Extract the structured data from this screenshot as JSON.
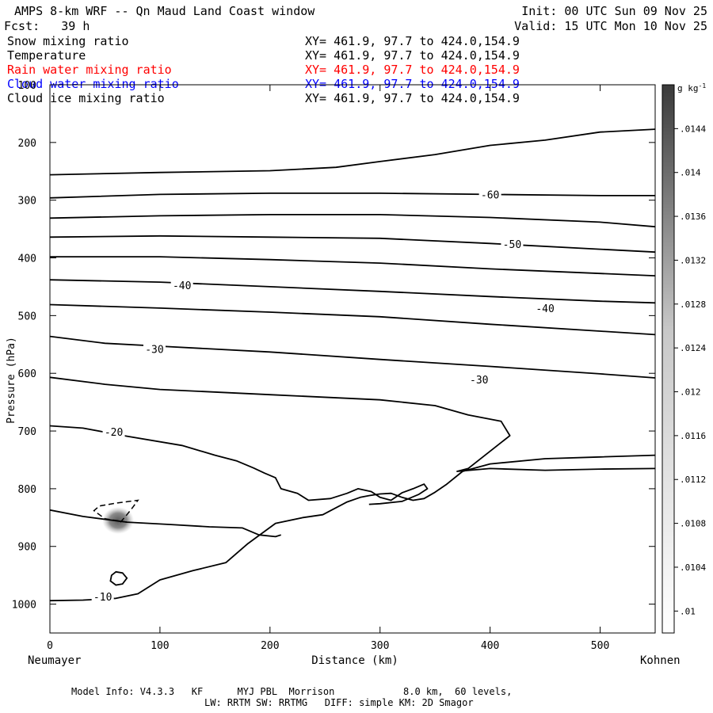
{
  "header": {
    "title": "AMPS 8-km WRF -- Qn Maud Land Coast window",
    "init": "Init: 00 UTC Sun 09 Nov 25",
    "fcst": "Fcst:   39 h",
    "valid": "Valid: 15 UTC Mon 10 Nov 25"
  },
  "fields": [
    {
      "name": "Snow mixing ratio",
      "xy": "XY= 461.9, 97.7 to 424.0,154.9",
      "color": "#000000"
    },
    {
      "name": "Temperature",
      "xy": "XY= 461.9, 97.7 to 424.0,154.9",
      "color": "#000000"
    },
    {
      "name": "Rain water mixing ratio",
      "xy": "XY= 461.9, 97.7 to 424.0,154.9",
      "color": "#ff0000"
    },
    {
      "name": "Cloud water mixing ratio",
      "xy": "XY= 461.9, 97.7 to 424.0,154.9",
      "color": "#0000ff"
    },
    {
      "name": "Cloud ice mixing ratio",
      "xy": "XY= 461.9, 97.7 to 424.0,154.9",
      "color": "#000000"
    }
  ],
  "footer": {
    "line1": "Model Info: V4.3.3   KF      MYJ PBL  Morrison            8.0 km,  60 levels,",
    "line2": "LW: RRTM SW: RRTMG   DIFF: simple KM: 2D Smagor"
  },
  "chart_data": {
    "type": "cross-section contour",
    "xlabel": "Distance (km)",
    "ylabel": "Pressure (hPa)",
    "x_left_label": "Neumayer",
    "x_right_label": "Kohnen",
    "xlim": [
      0,
      550
    ],
    "ylim": [
      1050,
      100
    ],
    "x_ticks": [
      0,
      100,
      200,
      300,
      400,
      500
    ],
    "y_ticks": [
      100,
      200,
      300,
      400,
      500,
      600,
      700,
      800,
      900,
      1000
    ],
    "colorbar": {
      "unit": "g kg",
      "unit_exp": "-1",
      "ticks": [
        ".01",
        ".0104",
        ".0108",
        ".0112",
        ".0116",
        ".012",
        ".0124",
        ".0128",
        ".0132",
        ".0136",
        ".014",
        ".0144"
      ],
      "min": 0.0098,
      "max": 0.0148,
      "light": "#ffffff",
      "dark": "#3a3a3a"
    },
    "temperature_contours": [
      {
        "points": [
          [
            0,
            256
          ],
          [
            100,
            252
          ],
          [
            200,
            249
          ],
          [
            260,
            243
          ],
          [
            300,
            233
          ],
          [
            350,
            221
          ],
          [
            400,
            205
          ],
          [
            450,
            196
          ],
          [
            500,
            182
          ],
          [
            550,
            177
          ]
        ]
      },
      {
        "points": [
          [
            0,
            296
          ],
          [
            100,
            290
          ],
          [
            200,
            288
          ],
          [
            300,
            288
          ],
          [
            400,
            290
          ],
          [
            500,
            292
          ],
          [
            550,
            292
          ]
        ]
      },
      {
        "points": [
          [
            0,
            331
          ],
          [
            100,
            327
          ],
          [
            200,
            325
          ],
          [
            300,
            325
          ],
          [
            400,
            330
          ],
          [
            500,
            338
          ],
          [
            550,
            346
          ]
        ]
      },
      {
        "points": [
          [
            0,
            364
          ],
          [
            100,
            362
          ],
          [
            200,
            364
          ],
          [
            300,
            366
          ],
          [
            400,
            375
          ],
          [
            500,
            385
          ],
          [
            550,
            390
          ]
        ]
      },
      {
        "points": [
          [
            0,
            398
          ],
          [
            100,
            398
          ],
          [
            200,
            403
          ],
          [
            300,
            409
          ],
          [
            400,
            419
          ],
          [
            500,
            427
          ],
          [
            550,
            431
          ]
        ]
      },
      {
        "points": [
          [
            0,
            438
          ],
          [
            100,
            442
          ],
          [
            200,
            450
          ],
          [
            300,
            458
          ],
          [
            400,
            467
          ],
          [
            500,
            475
          ],
          [
            550,
            478
          ]
        ]
      },
      {
        "points": [
          [
            0,
            481
          ],
          [
            100,
            487
          ],
          [
            200,
            494
          ],
          [
            300,
            502
          ],
          [
            400,
            515
          ],
          [
            500,
            527
          ],
          [
            550,
            533
          ]
        ]
      },
      {
        "points": [
          [
            0,
            536
          ],
          [
            50,
            548
          ],
          [
            100,
            553
          ],
          [
            200,
            563
          ],
          [
            300,
            576
          ],
          [
            400,
            588
          ],
          [
            500,
            601
          ],
          [
            550,
            608
          ]
        ]
      },
      {
        "points": [
          [
            0,
            607
          ],
          [
            50,
            619
          ],
          [
            100,
            628
          ],
          [
            200,
            637
          ],
          [
            300,
            646
          ],
          [
            350,
            656
          ],
          [
            380,
            672
          ],
          [
            410,
            683
          ],
          [
            418,
            708
          ],
          [
            380,
            765
          ],
          [
            370,
            770
          ],
          [
            400,
            765
          ],
          [
            450,
            768
          ],
          [
            500,
            766
          ],
          [
            550,
            765
          ]
        ]
      },
      {
        "points": [
          [
            0,
            691
          ],
          [
            30,
            695
          ],
          [
            70,
            709
          ],
          [
            120,
            725
          ],
          [
            150,
            742
          ],
          [
            170,
            752
          ],
          [
            185,
            764
          ],
          [
            195,
            773
          ],
          [
            205,
            781
          ],
          [
            210,
            800
          ],
          [
            225,
            808
          ],
          [
            235,
            820
          ],
          [
            255,
            817
          ],
          [
            270,
            808
          ],
          [
            280,
            800
          ],
          [
            292,
            805
          ],
          [
            300,
            815
          ],
          [
            310,
            820
          ],
          [
            320,
            807
          ],
          [
            330,
            800
          ],
          [
            340,
            792
          ],
          [
            343,
            800
          ],
          [
            335,
            810
          ],
          [
            320,
            822
          ],
          [
            300,
            826
          ],
          [
            290,
            827
          ]
        ]
      },
      {
        "points": [
          [
            0,
            837
          ],
          [
            30,
            848
          ],
          [
            70,
            858
          ],
          [
            110,
            862
          ],
          [
            145,
            866
          ],
          [
            175,
            868
          ],
          [
            190,
            880
          ],
          [
            205,
            883
          ],
          [
            210,
            880
          ]
        ]
      },
      {
        "points": [
          [
            0,
            994
          ],
          [
            30,
            993
          ],
          [
            60,
            990
          ],
          [
            80,
            982
          ],
          [
            100,
            958
          ],
          [
            130,
            942
          ],
          [
            160,
            928
          ],
          [
            180,
            895
          ],
          [
            205,
            860
          ],
          [
            230,
            850
          ],
          [
            248,
            845
          ],
          [
            255,
            838
          ],
          [
            270,
            823
          ],
          [
            282,
            815
          ],
          [
            290,
            812
          ],
          [
            300,
            809
          ],
          [
            310,
            808
          ],
          [
            320,
            815
          ],
          [
            330,
            820
          ],
          [
            340,
            817
          ],
          [
            350,
            806
          ],
          [
            360,
            793
          ],
          [
            375,
            770
          ],
          [
            400,
            757
          ],
          [
            450,
            748
          ],
          [
            500,
            745
          ],
          [
            550,
            742
          ]
        ]
      }
    ],
    "closed_contours": [
      {
        "points": [
          [
            60,
            944
          ],
          [
            66,
            946
          ],
          [
            70,
            955
          ],
          [
            66,
            965
          ],
          [
            60,
            967
          ],
          [
            55,
            960
          ],
          [
            56,
            950
          ],
          [
            60,
            944
          ]
        ]
      }
    ],
    "contour_labels": [
      {
        "text": "-60",
        "x": 400,
        "p": 290
      },
      {
        "text": "-50",
        "x": 420,
        "p": 376
      },
      {
        "text": "-40",
        "x": 120,
        "p": 447
      },
      {
        "text": "-40",
        "x": 450,
        "p": 487
      },
      {
        "text": "-30",
        "x": 95,
        "p": 558
      },
      {
        "text": "-30",
        "x": 390,
        "p": 611
      },
      {
        "text": "-20",
        "x": 58,
        "p": 701
      },
      {
        "text": "-10",
        "x": 48,
        "p": 987
      }
    ],
    "dashed_contour": {
      "label": "Cloud ice mixing ratio",
      "points": [
        [
          70,
          858
        ],
        [
          50,
          852
        ],
        [
          40,
          838
        ],
        [
          45,
          830
        ],
        [
          60,
          825
        ],
        [
          72,
          822
        ],
        [
          80,
          820
        ],
        [
          75,
          833
        ],
        [
          70,
          845
        ],
        [
          65,
          856
        ],
        [
          62,
          862
        ]
      ]
    },
    "shaded_blob": {
      "x": 62,
      "p": 855,
      "value": 0.0138
    }
  }
}
